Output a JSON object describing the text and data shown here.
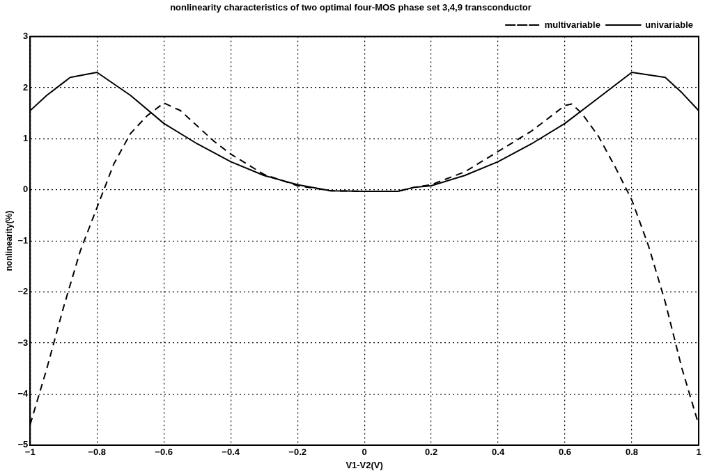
{
  "chart_data": {
    "type": "line",
    "title": "nonlinearity characteristics of two optimal four-MOS phase set 3,4,9 transconductor",
    "xlabel": "V1-V2(V)",
    "ylabel": "nonlinearity(%)",
    "xlim": [
      -1,
      1
    ],
    "xticks": [
      -1,
      -0.8,
      -0.6,
      -0.4,
      -0.2,
      0,
      0.2,
      0.4,
      0.6,
      0.8,
      1
    ],
    "ylim": [
      -5,
      3
    ],
    "yticks": [
      -5,
      -4,
      -3,
      -2,
      -1,
      0,
      1,
      2,
      3
    ],
    "grid": true,
    "legend": "top right",
    "marker": "none",
    "series": [
      {
        "name": "multivariable",
        "color": "#000000",
        "line_style": "dashed",
        "x": [
          -1,
          -0.95,
          -0.9,
          -0.85,
          -0.8,
          -0.75,
          -0.7,
          -0.65,
          -0.6,
          -0.55,
          -0.5,
          -0.45,
          -0.4,
          -0.3,
          -0.2,
          -0.1,
          0,
          0.1,
          0.15,
          0.2,
          0.3,
          0.4,
          0.5,
          0.6,
          0.62,
          0.65,
          0.7,
          0.75,
          0.8,
          0.85,
          0.9,
          0.95,
          1
        ],
        "values": [
          -4.6,
          -3.5,
          -2.3,
          -1.2,
          -0.35,
          0.5,
          1.1,
          1.45,
          1.7,
          1.55,
          1.25,
          0.95,
          0.7,
          0.3,
          0.08,
          -0.02,
          -0.03,
          -0.03,
          0.05,
          0.1,
          0.35,
          0.75,
          1.15,
          1.65,
          1.68,
          1.5,
          1.05,
          0.45,
          -0.2,
          -1.1,
          -2.2,
          -3.5,
          -4.6
        ]
      },
      {
        "name": "univariable",
        "color": "#000000",
        "line_style": "solid",
        "x": [
          -1,
          -0.95,
          -0.9,
          -0.88,
          -0.8,
          -0.7,
          -0.6,
          -0.5,
          -0.4,
          -0.3,
          -0.2,
          -0.1,
          0,
          0.1,
          0.15,
          0.2,
          0.3,
          0.4,
          0.5,
          0.6,
          0.7,
          0.8,
          0.9,
          0.95,
          1
        ],
        "values": [
          1.55,
          1.85,
          2.1,
          2.2,
          2.3,
          1.85,
          1.3,
          0.9,
          0.55,
          0.28,
          0.1,
          -0.02,
          -0.03,
          -0.03,
          0.05,
          0.08,
          0.28,
          0.55,
          0.9,
          1.3,
          1.8,
          2.3,
          2.2,
          1.9,
          1.55
        ]
      }
    ]
  }
}
